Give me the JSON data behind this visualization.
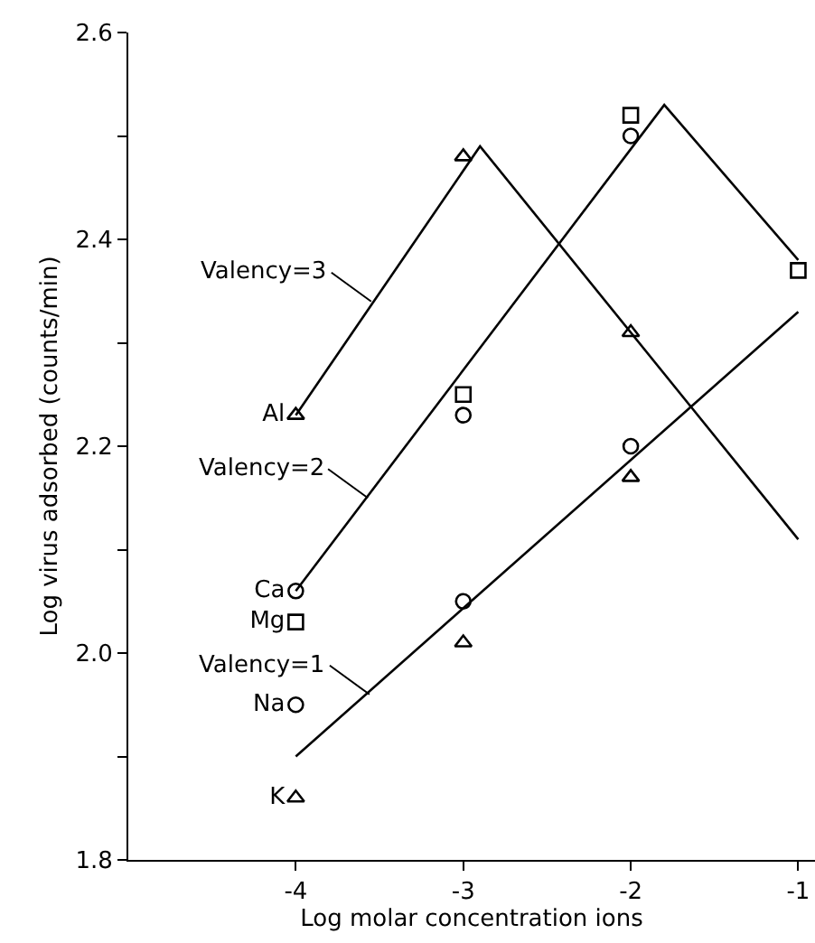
{
  "chart_data": {
    "type": "scatter",
    "xlabel": "Log molar concentration ions",
    "ylabel": "Log virus adsorbed (counts/min)",
    "xlim": [
      -5,
      -0.9
    ],
    "xticks": [
      -4,
      -3,
      -2,
      -1
    ],
    "ylim": [
      1.8,
      2.6
    ],
    "yticks": [
      1.8,
      {
        "value": 1.9,
        "label": null
      },
      {
        "value": 2,
        "label": "2.0"
      },
      {
        "value": 2.1,
        "label": null
      },
      2.2,
      {
        "value": 2.3,
        "label": null
      },
      2.4,
      {
        "value": 2.5,
        "label": null
      },
      2.6
    ],
    "grid": false,
    "legend": false,
    "series": [
      {
        "type": "line",
        "color": "#000000",
        "x": [
          -4,
          -2.9,
          -1
        ],
        "values": [
          2.23,
          2.49,
          2.11
        ],
        "marker": "none"
      },
      {
        "type": "line",
        "color": "#000000",
        "x": [
          -4,
          -1.8,
          -1
        ],
        "values": [
          2.06,
          2.53,
          2.38
        ],
        "marker": "none"
      },
      {
        "type": "line",
        "color": "#000000",
        "x": [
          -4,
          -1
        ],
        "values": [
          1.9,
          2.33
        ],
        "marker": "none"
      },
      {
        "name": "Al",
        "color": "#000000",
        "x": [
          -4,
          -3,
          -2
        ],
        "values": [
          2.23,
          2.48,
          2.31
        ],
        "marker": "triangle"
      },
      {
        "name": "Ca",
        "color": "#000000",
        "x": [
          -4,
          -3,
          -2
        ],
        "values": [
          2.06,
          2.23,
          2.5
        ],
        "marker": "circle"
      },
      {
        "name": "Mg",
        "color": "#000000",
        "x": [
          -4,
          -3,
          -2,
          -1
        ],
        "values": [
          2.03,
          2.25,
          2.52,
          2.37
        ],
        "marker": "square"
      },
      {
        "name": "Na",
        "color": "#000000",
        "x": [
          -4,
          -3,
          -2
        ],
        "values": [
          1.95,
          2.05,
          2.2
        ],
        "marker": "circle"
      },
      {
        "name": "K",
        "color": "#000000",
        "x": [
          -4,
          -3,
          -2
        ],
        "values": [
          1.86,
          2.01,
          2.17
        ],
        "marker": "triangle"
      }
    ],
    "annotations": [
      {
        "text": "Valency=3",
        "x": -3.55,
        "y": 2.34
      },
      {
        "text": "Valency=2",
        "x": -3.57,
        "y": 2.15
      },
      {
        "text": "Valency=1",
        "x": -3.56,
        "y": 1.96
      }
    ]
  }
}
